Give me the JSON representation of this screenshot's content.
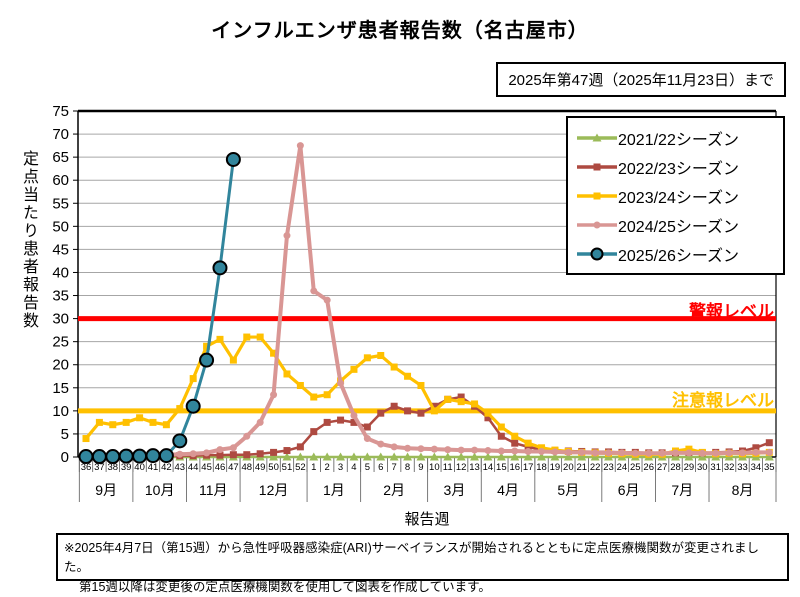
{
  "title": "インフルエンザ患者報告数（名古屋市）",
  "as_of": "2025年第47週（2025年11月23日）まで",
  "footnote": {
    "line1": "※2025年4月7日（第15週）から急性呼吸器感染症(ARI)サーベイランスが開始されるとともに定点医療機関数が変更されました。",
    "line2": "第15週以降は変更後の定点医療機関数を使用して図表を作成しています。"
  },
  "chart_data": {
    "type": "line",
    "title": "インフルエンザ患者報告数（名古屋市）",
    "xlabel": "報告週",
    "ylabel": "定点当たり患者報告数",
    "ylim": [
      0,
      75
    ],
    "ytick_step": 5,
    "grid": true,
    "legend_position": "upper right",
    "categories": [
      "36",
      "37",
      "38",
      "39",
      "40",
      "41",
      "42",
      "43",
      "44",
      "45",
      "46",
      "47",
      "48",
      "49",
      "50",
      "51",
      "52",
      "1",
      "2",
      "3",
      "4",
      "5",
      "6",
      "7",
      "8",
      "9",
      "10",
      "11",
      "12",
      "13",
      "14",
      "15",
      "16",
      "17",
      "18",
      "19",
      "20",
      "21",
      "22",
      "23",
      "24",
      "25",
      "26",
      "27",
      "28",
      "29",
      "30",
      "31",
      "32",
      "33",
      "34",
      "35"
    ],
    "months": [
      {
        "label": "9月",
        "weeks": 4
      },
      {
        "label": "10月",
        "weeks": 4
      },
      {
        "label": "11月",
        "weeks": 4
      },
      {
        "label": "12月",
        "weeks": 5
      },
      {
        "label": "1月",
        "weeks": 4
      },
      {
        "label": "2月",
        "weeks": 5
      },
      {
        "label": "3月",
        "weeks": 4
      },
      {
        "label": "4月",
        "weeks": 4
      },
      {
        "label": "5月",
        "weeks": 5
      },
      {
        "label": "6月",
        "weeks": 4
      },
      {
        "label": "7月",
        "weeks": 4
      },
      {
        "label": "8月",
        "weeks": 5
      }
    ],
    "alert_lines": [
      {
        "label": "警報レベル",
        "value": 30,
        "color": "#FF0000"
      },
      {
        "label": "注意報レベル",
        "value": 10,
        "color": "#FFC000"
      }
    ],
    "series": [
      {
        "name": "2021/22シーズン",
        "color": "#9BBB59",
        "marker": "triangle",
        "values": [
          0,
          0,
          0,
          0,
          0,
          0,
          0,
          0,
          0,
          0,
          0,
          0,
          0,
          0,
          0,
          0,
          0,
          0,
          0,
          0,
          0,
          0,
          0,
          0,
          0,
          0,
          0,
          0,
          0,
          0,
          0,
          0,
          0,
          0,
          0,
          0,
          0,
          0,
          0,
          0,
          0,
          0,
          0,
          0,
          0,
          0,
          0,
          0,
          0,
          0,
          0,
          0
        ]
      },
      {
        "name": "2022/23シーズン",
        "color": "#AE4A41",
        "marker": "square",
        "values": [
          0.1,
          0.1,
          0.1,
          0.1,
          0.2,
          0.2,
          0.2,
          0.3,
          0.3,
          0.4,
          0.4,
          0.5,
          0.5,
          0.7,
          1.0,
          1.4,
          2.2,
          5.5,
          7.5,
          8.0,
          7.5,
          6.5,
          9.5,
          11.0,
          10.0,
          9.5,
          11.0,
          12.5,
          13.0,
          11.0,
          8.5,
          4.5,
          3.0,
          2.2,
          1.6,
          1.4,
          1.3,
          1.2,
          1.1,
          1.1,
          1.0,
          1.0,
          0.9,
          0.9,
          0.9,
          1.0,
          0.9,
          1.0,
          1.1,
          1.3,
          2.0,
          3.1
        ]
      },
      {
        "name": "2023/24シーズン",
        "color": "#FFC000",
        "marker": "square",
        "values": [
          4.0,
          7.5,
          7.0,
          7.5,
          8.5,
          7.5,
          7.0,
          10.5,
          17.0,
          24.0,
          25.5,
          21.0,
          26.0,
          26.0,
          22.5,
          18.0,
          15.5,
          13.0,
          13.5,
          16.5,
          19.0,
          21.5,
          22.0,
          19.5,
          17.5,
          15.5,
          10.0,
          12.5,
          12.0,
          11.5,
          9.5,
          6.5,
          4.5,
          3.0,
          2.0,
          1.5,
          1.2,
          1.0,
          0.9,
          0.8,
          0.7,
          0.6,
          0.6,
          0.6,
          1.3,
          1.7,
          1.0,
          0.7,
          0.8,
          0.7,
          0.8,
          1.0
        ]
      },
      {
        "name": "2024/25シーズン",
        "color": "#D99694",
        "marker": "circle",
        "values": [
          0.3,
          0.3,
          0.3,
          0.4,
          0.4,
          0.5,
          0.5,
          0.6,
          0.7,
          0.9,
          1.6,
          2.0,
          4.5,
          7.5,
          13.5,
          48.0,
          67.5,
          36.0,
          34.0,
          16.0,
          9.0,
          4.0,
          2.8,
          2.2,
          1.9,
          1.8,
          1.7,
          1.6,
          1.5,
          1.5,
          1.4,
          1.3,
          1.3,
          1.2,
          1.2,
          1.1,
          1.0,
          1.0,
          0.9,
          0.9,
          0.9,
          0.8,
          0.8,
          0.8,
          0.9,
          0.9,
          0.8,
          0.8,
          0.9,
          0.9,
          1.0,
          1.0
        ]
      },
      {
        "name": "2025/26シーズン",
        "color": "#31859C",
        "marker": "ring",
        "values": [
          0.1,
          0.1,
          0.1,
          0.2,
          0.2,
          0.3,
          0.3,
          3.5,
          11.0,
          21.0,
          41.0,
          64.5,
          null,
          null,
          null,
          null,
          null,
          null,
          null,
          null,
          null,
          null,
          null,
          null,
          null,
          null,
          null,
          null,
          null,
          null,
          null,
          null,
          null,
          null,
          null,
          null,
          null,
          null,
          null,
          null,
          null,
          null,
          null,
          null,
          null,
          null,
          null,
          null,
          null,
          null,
          null,
          null
        ]
      }
    ]
  }
}
